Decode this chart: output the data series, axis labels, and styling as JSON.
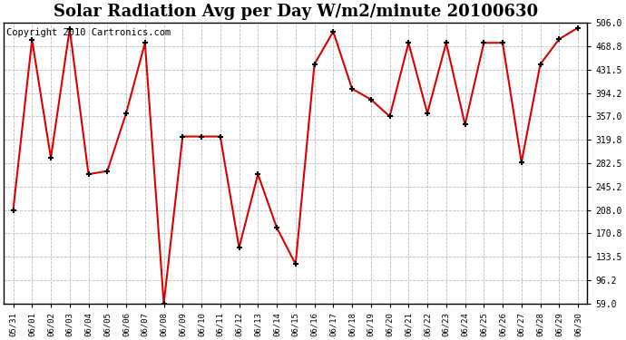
{
  "title": "Solar Radiation Avg per Day W/m2/minute 20100630",
  "copyright": "Copyright 2010 Cartronics.com",
  "x_labels": [
    "05/31",
    "06/01",
    "06/02",
    "06/03",
    "06/04",
    "06/05",
    "06/06",
    "06/07",
    "06/08",
    "06/09",
    "06/10",
    "06/11",
    "06/12",
    "06/13",
    "06/14",
    "06/15",
    "06/16",
    "06/17",
    "06/18",
    "06/19",
    "06/20",
    "06/21",
    "06/22",
    "06/23",
    "06/24",
    "06/25",
    "06/26",
    "06/27",
    "06/28",
    "06/29",
    "06/30"
  ],
  "y_values": [
    208.0,
    479.0,
    291.0,
    496.0,
    265.0,
    270.0,
    362.0,
    474.0,
    59.0,
    325.0,
    325.0,
    325.0,
    148.0,
    265.0,
    180.0,
    122.0,
    440.0,
    492.0,
    401.0,
    384.0,
    357.0,
    474.0,
    362.0,
    474.0,
    344.0,
    474.0,
    474.0,
    284.0,
    440.0,
    480.0,
    498.0
  ],
  "line_color": "#dd0000",
  "marker_color": "#000000",
  "bg_color": "#ffffff",
  "plot_bg_color": "#ffffff",
  "grid_color": "#bbbbbb",
  "y_ticks": [
    59.0,
    96.2,
    133.5,
    170.8,
    208.0,
    245.2,
    282.5,
    319.8,
    357.0,
    394.2,
    431.5,
    468.8,
    506.0
  ],
  "y_min": 59.0,
  "y_max": 506.0,
  "title_fontsize": 13,
  "copyright_fontsize": 7.5
}
